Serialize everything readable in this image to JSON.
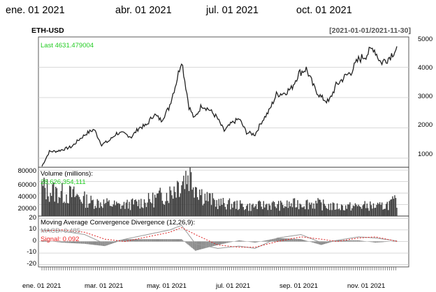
{
  "chart_data": {
    "type": "line",
    "title": "ETH-USD",
    "date_range": "[2021-01-01/2021-11-30]",
    "top_axis_ticks": [
      "ene. 01 2021",
      "abr. 01 2021",
      "jul. 01 2021",
      "oct. 01 2021"
    ],
    "bottom_axis_ticks": [
      "ene. 01 2021",
      "mar. 01 2021",
      "may. 01 2021",
      "jul. 01 2021",
      "sep. 01 2021",
      "nov. 01 2021"
    ],
    "price_panel": {
      "last_label": "Last 4631.479004",
      "ylim": [
        700,
        5000
      ],
      "yticks": [
        "1000",
        "2000",
        "3000",
        "4000",
        "5000"
      ],
      "series": {
        "name": "ETH-USD Close",
        "x": [
          "2021-01-01",
          "2021-01-08",
          "2021-01-15",
          "2021-01-22",
          "2021-01-29",
          "2021-02-05",
          "2021-02-12",
          "2021-02-19",
          "2021-02-26",
          "2021-03-05",
          "2021-03-12",
          "2021-03-19",
          "2021-03-26",
          "2021-04-02",
          "2021-04-09",
          "2021-04-16",
          "2021-04-23",
          "2021-04-30",
          "2021-05-07",
          "2021-05-12",
          "2021-05-19",
          "2021-05-24",
          "2021-05-31",
          "2021-06-07",
          "2021-06-14",
          "2021-06-21",
          "2021-06-28",
          "2021-07-05",
          "2021-07-12",
          "2021-07-20",
          "2021-07-26",
          "2021-08-02",
          "2021-08-09",
          "2021-08-16",
          "2021-08-23",
          "2021-08-30",
          "2021-09-06",
          "2021-09-13",
          "2021-09-20",
          "2021-09-27",
          "2021-10-04",
          "2021-10-11",
          "2021-10-18",
          "2021-10-25",
          "2021-11-01",
          "2021-11-08",
          "2021-11-15",
          "2021-11-22",
          "2021-11-30"
        ],
        "y": [
          730,
          1220,
          1230,
          1300,
          1380,
          1620,
          1820,
          1950,
          1450,
          1570,
          1820,
          1810,
          1700,
          2000,
          2080,
          2450,
          2250,
          2650,
          3500,
          4250,
          2700,
          2300,
          2750,
          2600,
          2350,
          1900,
          2150,
          2300,
          1850,
          1780,
          2200,
          2550,
          3100,
          3150,
          3300,
          3800,
          3950,
          3350,
          3000,
          2850,
          3400,
          3650,
          3850,
          4250,
          4400,
          4650,
          4150,
          4300,
          4631.479004
        ]
      }
    },
    "volume_panel": {
      "label": "Volume (millions):",
      "value_label": "28,626,354,111",
      "ylim": [
        0,
        85000
      ],
      "yticks": [
        "20000",
        "40000",
        "60000",
        "80000"
      ],
      "series": {
        "name": "Volume (millions)",
        "x": [
          "2021-01-01",
          "2021-01-15",
          "2021-02-01",
          "2021-02-15",
          "2021-03-01",
          "2021-03-15",
          "2021-04-01",
          "2021-04-15",
          "2021-05-01",
          "2021-05-12",
          "2021-05-19",
          "2021-06-01",
          "2021-06-15",
          "2021-07-01",
          "2021-07-15",
          "2021-08-01",
          "2021-08-15",
          "2021-09-01",
          "2021-09-15",
          "2021-10-01",
          "2021-10-15",
          "2021-11-01",
          "2021-11-15",
          "2021-11-30"
        ],
        "y": [
          55000,
          45000,
          40000,
          28000,
          25000,
          20000,
          25000,
          32000,
          45000,
          70000,
          82000,
          40000,
          25000,
          22000,
          18000,
          22000,
          20000,
          25000,
          24000,
          18000,
          18000,
          20000,
          18000,
          28626
        ]
      }
    },
    "macd_panel": {
      "title": "Moving Average Convergence Divergence (12,26,9):",
      "macd_label": "MACD: 0.485",
      "signal_label": "Signal: 0.092",
      "ylim": [
        -22,
        22
      ],
      "yticks": [
        "-20",
        "-10",
        "0",
        "10",
        "20"
      ],
      "series": [
        {
          "name": "MACD",
          "x": [
            "2021-01-01",
            "2021-01-20",
            "2021-02-10",
            "2021-03-01",
            "2021-03-20",
            "2021-04-10",
            "2021-05-01",
            "2021-05-12",
            "2021-05-25",
            "2021-06-15",
            "2021-07-05",
            "2021-07-20",
            "2021-08-10",
            "2021-09-01",
            "2021-09-20",
            "2021-10-05",
            "2021-10-25",
            "2021-11-10",
            "2021-11-30"
          ],
          "y": [
            10,
            9,
            6,
            -2,
            2,
            6,
            10,
            14,
            -2,
            -6,
            -4,
            -6,
            3,
            6,
            -1,
            1,
            4,
            3,
            0.485
          ]
        },
        {
          "name": "Signal",
          "x": [
            "2021-01-01",
            "2021-01-20",
            "2021-02-10",
            "2021-03-01",
            "2021-03-20",
            "2021-04-10",
            "2021-05-01",
            "2021-05-12",
            "2021-05-25",
            "2021-06-15",
            "2021-07-05",
            "2021-07-20",
            "2021-08-10",
            "2021-09-01",
            "2021-09-20",
            "2021-10-05",
            "2021-10-25",
            "2021-11-10",
            "2021-11-30"
          ],
          "y": [
            9,
            10,
            8,
            2,
            0,
            4,
            8,
            12,
            6,
            -3,
            -5,
            -5,
            0,
            4,
            2,
            0,
            3,
            4,
            0.092
          ]
        }
      ]
    }
  }
}
